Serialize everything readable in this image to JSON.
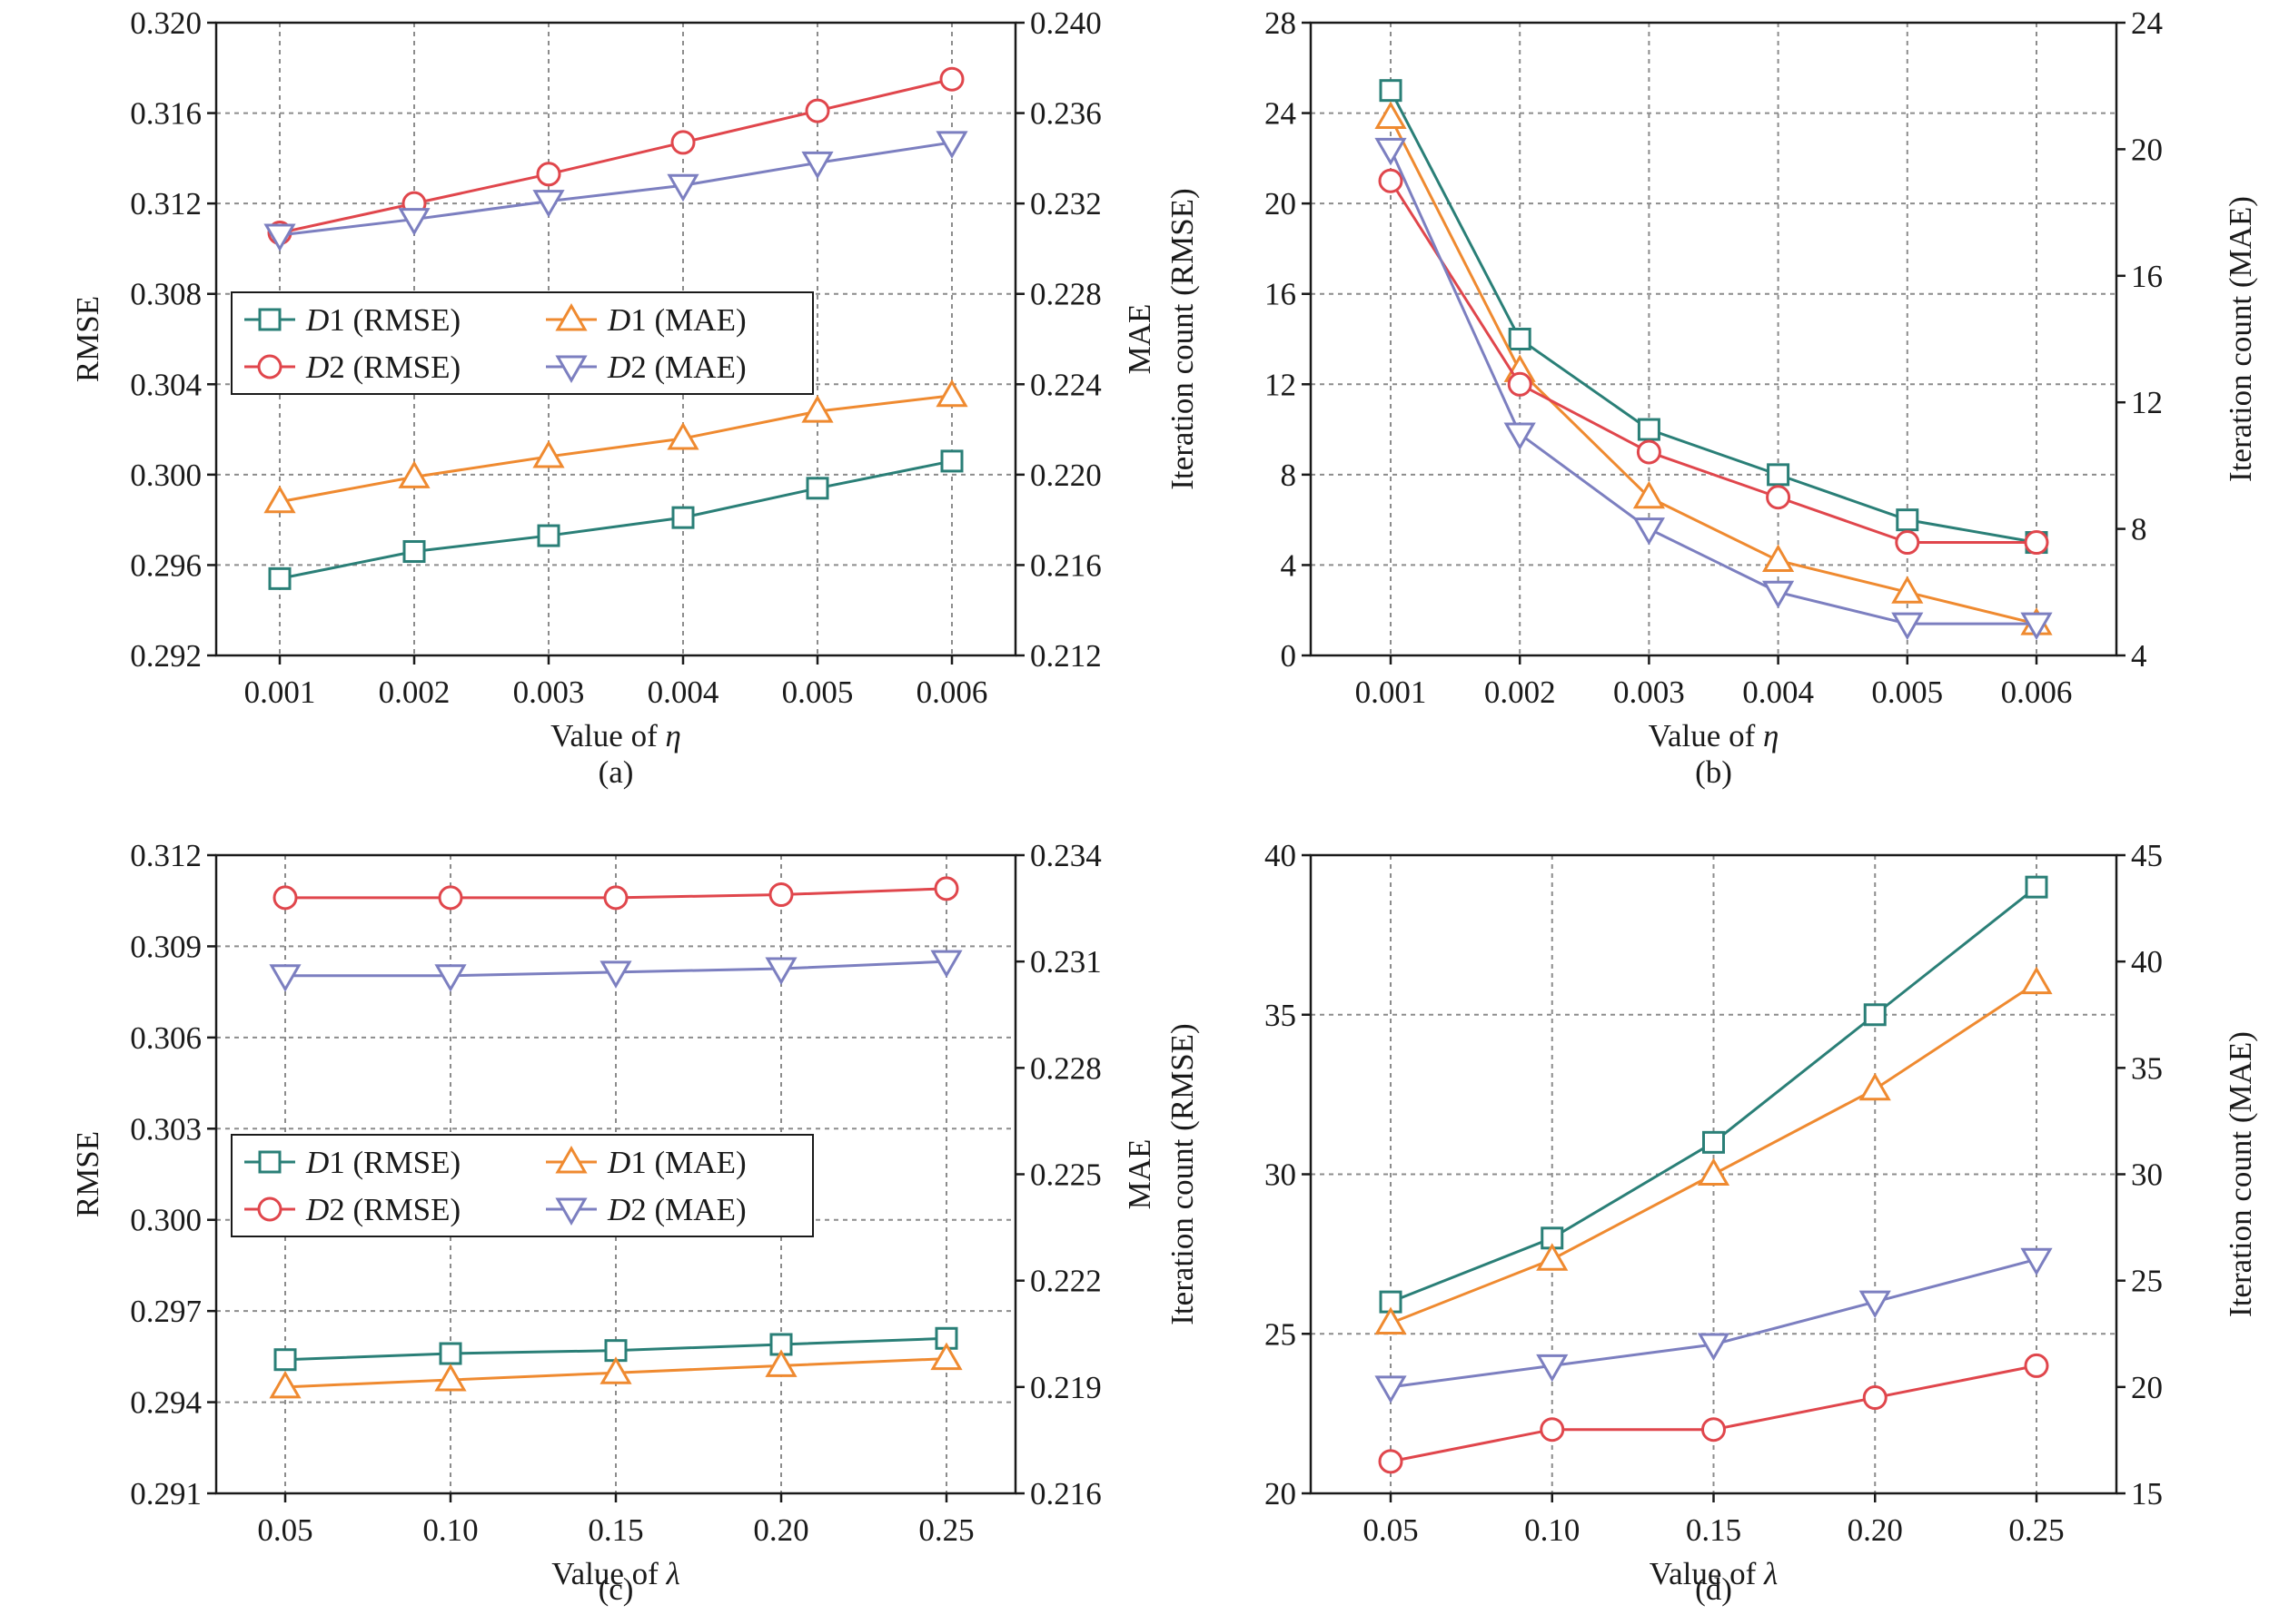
{
  "colors": {
    "D1_RMSE": "#2a7f77",
    "D1_MAE": "#ef8a30",
    "D2_RMSE": "#e0464c",
    "D2_MAE": "#7c7fc0"
  },
  "chart_data": [
    {
      "type": "line",
      "panel_label": "(a)",
      "xlabel": "Value of η",
      "ylabel": "RMSE",
      "ylabel_right": "MAE",
      "x": [
        "0.001",
        "0.002",
        "0.003",
        "0.004",
        "0.005",
        "0.006"
      ],
      "ylim": [
        0.292,
        0.32
      ],
      "ylim_right": [
        0.212,
        0.24
      ],
      "yticks": [
        "0.292",
        "0.296",
        "0.300",
        "0.304",
        "0.308",
        "0.312",
        "0.316",
        "0.320"
      ],
      "yticks_right": [
        "0.212",
        "0.216",
        "0.220",
        "0.224",
        "0.228",
        "0.232",
        "0.236",
        "0.240"
      ],
      "legend": "left",
      "grid": true,
      "series": [
        {
          "name": "D1 (RMSE)",
          "axis": "left",
          "marker": "square",
          "color_key": "D1_RMSE",
          "values": [
            0.2954,
            0.2966,
            0.2973,
            0.2981,
            0.2994,
            0.3006
          ]
        },
        {
          "name": "D1 (MAE)",
          "axis": "right",
          "marker": "triangle-up",
          "color_key": "D1_MAE",
          "values": [
            0.2188,
            0.2199,
            0.2208,
            0.2216,
            0.2228,
            0.2235
          ]
        },
        {
          "name": "D2 (RMSE)",
          "axis": "left",
          "marker": "circle",
          "color_key": "D2_RMSE",
          "values": [
            0.3107,
            0.312,
            0.3133,
            0.3147,
            0.3161,
            0.3175
          ]
        },
        {
          "name": "D2 (MAE)",
          "axis": "right",
          "marker": "triangle-down",
          "color_key": "D2_MAE",
          "values": [
            0.2306,
            0.2313,
            0.2321,
            0.2328,
            0.2338,
            0.2347
          ]
        }
      ]
    },
    {
      "type": "line",
      "panel_label": "(b)",
      "xlabel": "Value of η",
      "ylabel": "Iteration count (RMSE)",
      "ylabel_right": "Iteration count (MAE)",
      "x": [
        "0.001",
        "0.002",
        "0.003",
        "0.004",
        "0.005",
        "0.006"
      ],
      "ylim": [
        0,
        28
      ],
      "ylim_right": [
        4,
        24
      ],
      "yticks": [
        "0",
        "4",
        "8",
        "12",
        "16",
        "20",
        "24",
        "28"
      ],
      "yticks_right": [
        "4",
        "8",
        "12",
        "16",
        "20",
        "24"
      ],
      "grid": true,
      "series": [
        {
          "name": "D1 (RMSE)",
          "axis": "left",
          "marker": "square",
          "color_key": "D1_RMSE",
          "values": [
            25,
            14,
            10,
            8,
            6,
            5
          ]
        },
        {
          "name": "D1 (MAE)",
          "axis": "right",
          "marker": "triangle-up",
          "color_key": "D1_MAE",
          "values": [
            21,
            13,
            9,
            7,
            6,
            5
          ]
        },
        {
          "name": "D2 (RMSE)",
          "axis": "left",
          "marker": "circle",
          "color_key": "D2_RMSE",
          "values": [
            21,
            12,
            9,
            7,
            5,
            5
          ]
        },
        {
          "name": "D2 (MAE)",
          "axis": "right",
          "marker": "triangle-down",
          "color_key": "D2_MAE",
          "values": [
            20,
            11,
            8,
            6,
            5,
            5
          ]
        }
      ]
    },
    {
      "type": "line",
      "panel_label": "(c)",
      "xlabel": "Value of λ",
      "ylabel": "RMSE",
      "ylabel_right": "MAE",
      "x": [
        "0.05",
        "0.10",
        "0.15",
        "0.20",
        "0.25"
      ],
      "ylim": [
        0.291,
        0.312
      ],
      "ylim_right": [
        0.216,
        0.234
      ],
      "yticks": [
        "0.291",
        "0.294",
        "0.297",
        "0.300",
        "0.303",
        "0.306",
        "0.309",
        "0.312"
      ],
      "yticks_right": [
        "0.216",
        "0.219",
        "0.222",
        "0.225",
        "0.228",
        "0.231",
        "0.234"
      ],
      "legend": "left",
      "grid": true,
      "series": [
        {
          "name": "D1 (RMSE)",
          "axis": "left",
          "marker": "square",
          "color_key": "D1_RMSE",
          "values": [
            0.2954,
            0.2956,
            0.2957,
            0.2959,
            0.2961
          ]
        },
        {
          "name": "D1 (MAE)",
          "axis": "right",
          "marker": "triangle-up",
          "color_key": "D1_MAE",
          "values": [
            0.219,
            0.2192,
            0.2194,
            0.2196,
            0.2198
          ]
        },
        {
          "name": "D2 (RMSE)",
          "axis": "left",
          "marker": "circle",
          "color_key": "D2_RMSE",
          "values": [
            0.3106,
            0.3106,
            0.3106,
            0.3107,
            0.3109
          ]
        },
        {
          "name": "D2 (MAE)",
          "axis": "right",
          "marker": "triangle-down",
          "color_key": "D2_MAE",
          "values": [
            0.2306,
            0.2306,
            0.2307,
            0.2308,
            0.231
          ]
        }
      ]
    },
    {
      "type": "line",
      "panel_label": "(d)",
      "xlabel": "Value of λ",
      "ylabel": "Iteration count (RMSE)",
      "ylabel_right": "Iteration count (MAE)",
      "x": [
        "0.05",
        "0.10",
        "0.15",
        "0.20",
        "0.25"
      ],
      "ylim": [
        20,
        40
      ],
      "ylim_right": [
        15,
        45
      ],
      "yticks": [
        "20",
        "25",
        "30",
        "35",
        "40"
      ],
      "yticks_right": [
        "15",
        "20",
        "25",
        "30",
        "35",
        "40",
        "45"
      ],
      "grid": true,
      "series": [
        {
          "name": "D1 (RMSE)",
          "axis": "left",
          "marker": "square",
          "color_key": "D1_RMSE",
          "values": [
            26,
            28,
            31,
            35,
            39
          ]
        },
        {
          "name": "D1 (MAE)",
          "axis": "right",
          "marker": "triangle-up",
          "color_key": "D1_MAE",
          "values": [
            23,
            26,
            30,
            34,
            39
          ]
        },
        {
          "name": "D2 (RMSE)",
          "axis": "left",
          "marker": "circle",
          "color_key": "D2_RMSE",
          "values": [
            21,
            22,
            22,
            23,
            24
          ]
        },
        {
          "name": "D2 (MAE)",
          "axis": "right",
          "marker": "triangle-down",
          "color_key": "D2_MAE",
          "values": [
            20,
            21,
            22,
            24,
            26
          ]
        }
      ]
    }
  ]
}
